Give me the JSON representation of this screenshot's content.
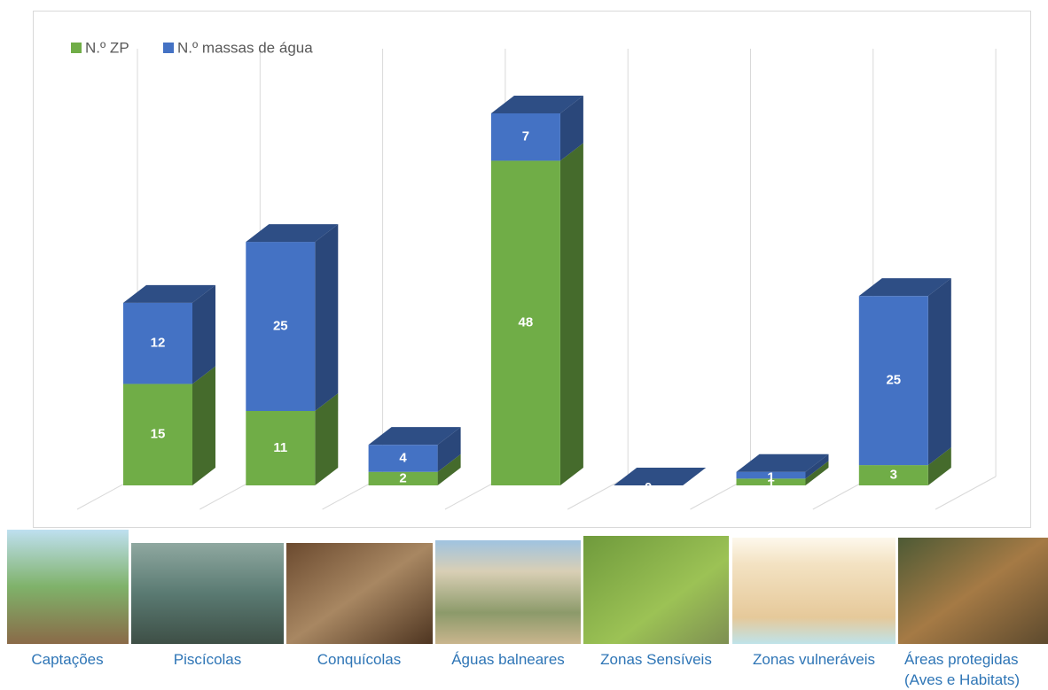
{
  "chart_data": {
    "type": "bar3d_stacked",
    "categories": [
      "Captações",
      "Piscícolas",
      "Conquícolas",
      "Águas balneares",
      "Zonas Sensíveis",
      "Zonas vulneráveis",
      "Áreas protegidas (Aves e Habitats)"
    ],
    "series": [
      {
        "name": "N.º ZP",
        "color": "#70ad47",
        "values": [
          15,
          11,
          2,
          48,
          0,
          1,
          3
        ]
      },
      {
        "name": "N.º massas de água",
        "color": "#4472c4",
        "values": [
          12,
          25,
          4,
          7,
          0,
          1,
          25
        ]
      }
    ],
    "legend": "top-left"
  }
}
